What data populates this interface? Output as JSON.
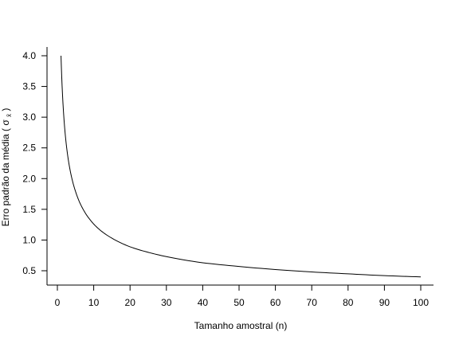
{
  "chart_data": {
    "type": "line",
    "title": "",
    "xlabel": "Tamanho amostral (n)",
    "ylabel": {
      "text": "Erro padrão da média ( σ",
      "subscript": "x̄",
      "close": " )"
    },
    "xlim": [
      1,
      100
    ],
    "ylim": [
      0.4,
      4.0
    ],
    "x_ticks": [
      0,
      10,
      20,
      30,
      40,
      50,
      60,
      70,
      80,
      90,
      100
    ],
    "x_tick_labels": [
      "0",
      "10",
      "20",
      "30",
      "40",
      "50",
      "60",
      "70",
      "80",
      "90",
      "100"
    ],
    "y_ticks": [
      0.5,
      1.0,
      1.5,
      2.0,
      2.5,
      3.0,
      3.5,
      4.0
    ],
    "y_tick_labels": [
      "0.5",
      "1.0",
      "1.5",
      "2.0",
      "2.5",
      "3.0",
      "3.5",
      "4.0"
    ],
    "grid": false,
    "legend": "none",
    "line_color": "#000000",
    "series": [
      {
        "x": [
          1,
          2,
          3,
          4,
          5,
          6,
          7,
          8,
          9,
          10,
          12,
          15,
          20,
          25,
          30,
          40,
          50,
          60,
          70,
          80,
          90,
          100
        ],
        "y": [
          4.0,
          2.83,
          2.31,
          2.0,
          1.79,
          1.63,
          1.51,
          1.41,
          1.33,
          1.26,
          1.15,
          1.03,
          0.89,
          0.8,
          0.73,
          0.63,
          0.57,
          0.52,
          0.48,
          0.45,
          0.42,
          0.4
        ]
      }
    ]
  }
}
